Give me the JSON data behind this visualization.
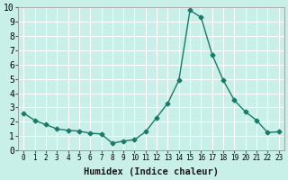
{
  "x": [
    0,
    1,
    2,
    3,
    4,
    5,
    6,
    7,
    8,
    9,
    10,
    11,
    12,
    13,
    14,
    15,
    16,
    17,
    18,
    19,
    20,
    21,
    22,
    23
  ],
  "y": [
    2.6,
    2.1,
    1.8,
    1.5,
    1.4,
    1.35,
    1.2,
    1.15,
    0.5,
    0.65,
    0.75,
    1.3,
    2.3,
    3.3,
    4.9,
    9.8,
    9.3,
    6.7,
    4.9,
    3.5,
    2.7,
    2.1,
    1.25,
    1.3
  ],
  "line_color": "#1a7a6a",
  "marker": "D",
  "marker_size": 2.5,
  "bg_color": "#c8f0e8",
  "grid_color": "#ffffff",
  "xlabel": "Humidex (Indice chaleur)",
  "xlim": [
    -0.5,
    23.5
  ],
  "ylim": [
    0,
    10
  ],
  "xticks": [
    0,
    1,
    2,
    3,
    4,
    5,
    6,
    7,
    8,
    9,
    10,
    11,
    12,
    13,
    14,
    15,
    16,
    17,
    18,
    19,
    20,
    21,
    22,
    23
  ],
  "yticks": [
    0,
    1,
    2,
    3,
    4,
    5,
    6,
    7,
    8,
    9,
    10
  ],
  "xlabel_fontsize": 7.5,
  "tick_fontsize": 7
}
